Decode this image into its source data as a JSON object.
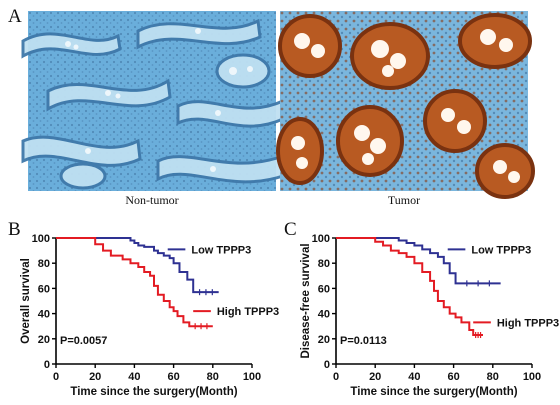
{
  "panel_a": {
    "letter": "A",
    "left_label": "Non-tumor",
    "right_label": "Tumor"
  },
  "panel_b": {
    "letter": "B"
  },
  "panel_c": {
    "letter": "C"
  },
  "colors": {
    "low": "#2e3192",
    "high": "#e31b23",
    "stain_blue": "#5aa4d6",
    "stain_brown": "#a84f1e"
  },
  "chart_data": [
    {
      "type": "line",
      "panel": "B",
      "xlabel": "Time since the surgery(Month)",
      "ylabel": "Overall survival",
      "xlim": [
        0,
        100
      ],
      "ylim": [
        0,
        100
      ],
      "xticks": [
        0,
        20,
        40,
        60,
        80,
        100
      ],
      "yticks": [
        0,
        20,
        40,
        60,
        80,
        100
      ],
      "annotation": "P=0.0057",
      "series": [
        {
          "name": "Low TPPP3",
          "color": "#2e3192",
          "x": [
            0,
            35,
            38,
            40,
            42,
            45,
            50,
            52,
            55,
            58,
            60,
            63,
            67,
            70,
            83
          ],
          "y": [
            100,
            100,
            98,
            96,
            94,
            93,
            90,
            88,
            86,
            84,
            80,
            73,
            67,
            57,
            57
          ]
        },
        {
          "name": "High TPPP3",
          "color": "#e31b23",
          "x": [
            0,
            16,
            20,
            24,
            28,
            34,
            38,
            42,
            45,
            48,
            50,
            52,
            55,
            58,
            60,
            62,
            65,
            68,
            80
          ],
          "y": [
            100,
            100,
            95,
            90,
            86,
            83,
            80,
            77,
            73,
            70,
            62,
            55,
            50,
            45,
            42,
            38,
            33,
            30,
            30
          ]
        }
      ]
    },
    {
      "type": "line",
      "panel": "C",
      "xlabel": "Time since the surgery(Month)",
      "ylabel": "Disease-free survival",
      "xlim": [
        0,
        100
      ],
      "ylim": [
        0,
        100
      ],
      "xticks": [
        0,
        20,
        40,
        60,
        80,
        100
      ],
      "yticks": [
        0,
        20,
        40,
        60,
        80,
        100
      ],
      "annotation": "P=0.0113",
      "series": [
        {
          "name": "Low TPPP3",
          "color": "#2e3192",
          "x": [
            0,
            28,
            32,
            36,
            40,
            44,
            48,
            52,
            55,
            58,
            61,
            84
          ],
          "y": [
            100,
            100,
            98,
            96,
            94,
            91,
            88,
            85,
            80,
            72,
            64,
            64
          ]
        },
        {
          "name": "High TPPP3",
          "color": "#e31b23",
          "x": [
            0,
            15,
            20,
            24,
            28,
            32,
            36,
            40,
            44,
            48,
            50,
            52,
            55,
            58,
            61,
            64,
            68,
            70,
            75
          ],
          "y": [
            100,
            100,
            97,
            94,
            90,
            88,
            85,
            80,
            73,
            66,
            58,
            50,
            45,
            40,
            37,
            33,
            27,
            23,
            23
          ]
        }
      ]
    }
  ]
}
